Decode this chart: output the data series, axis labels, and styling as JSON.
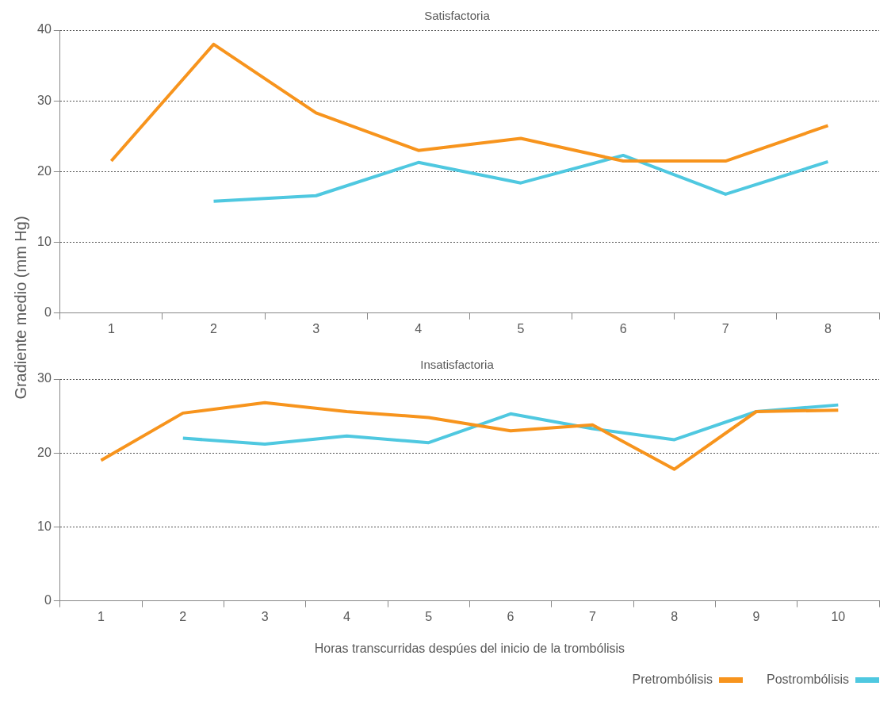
{
  "chart_data": [
    {
      "type": "line",
      "title": "Satisfactoria",
      "ylabel": "Gradiente medio (mm Hg)",
      "categories": [
        "1",
        "2",
        "3",
        "4",
        "5",
        "6",
        "7",
        "8"
      ],
      "series": [
        {
          "color": "#f7941d",
          "values": [
            21.5,
            38,
            28.3,
            23,
            24.7,
            21.5,
            21.5,
            26.5
          ]
        },
        {
          "color": "#4fc8e0",
          "values": [
            null,
            15.8,
            16.6,
            21.3,
            18.4,
            22.3,
            16.8,
            21.4
          ]
        }
      ],
      "ylim": [
        0,
        40
      ],
      "yticks": [
        0,
        10,
        20,
        30,
        40
      ],
      "grid": "y",
      "legend": false,
      "marker": "none"
    },
    {
      "type": "line",
      "title": "Insatisfactoria",
      "xlabel": "Horas transcurridas despúes del inicio de la trombólisis",
      "categories": [
        "1",
        "2",
        "3",
        "4",
        "5",
        "6",
        "7",
        "8",
        "9",
        "10"
      ],
      "series": [
        {
          "name": "Pretrombólisis",
          "color": "#f7941d",
          "values": [
            19,
            25.4,
            26.8,
            25.6,
            24.8,
            23,
            23.8,
            17.8,
            25.6,
            25.8
          ]
        },
        {
          "name": "Postrombólisis",
          "color": "#4fc8e0",
          "values": [
            null,
            22,
            21.2,
            22.3,
            21.4,
            25.3,
            23.3,
            21.8,
            25.6,
            26.5
          ]
        }
      ],
      "ylim": [
        0,
        30
      ],
      "yticks": [
        0,
        10,
        20,
        30
      ],
      "grid": "y",
      "legend": "bottom right",
      "marker": "none"
    }
  ]
}
